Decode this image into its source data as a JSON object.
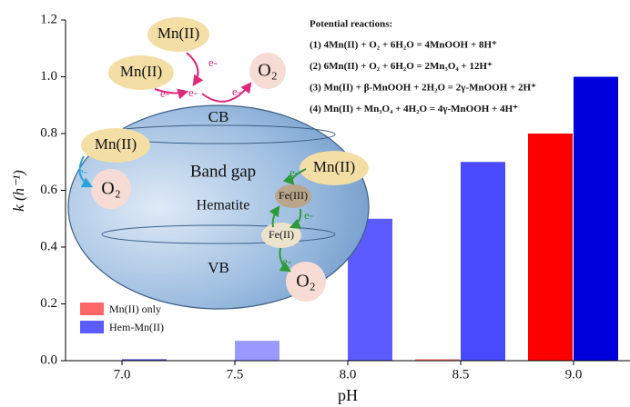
{
  "chart_data": {
    "type": "bar",
    "x_label": "pH",
    "y_label": "k (h⁻¹)",
    "categories": [
      "7.0",
      "7.5",
      "8.0",
      "8.5",
      "9.0"
    ],
    "series": [
      {
        "name": "Mn(II) only",
        "color": "#ff6666",
        "colors": [
          "#ff9999",
          "#ff9999",
          "#ff9999",
          "#ff7070",
          "#ff0000"
        ],
        "values": [
          0,
          0,
          0,
          0.005,
          0.8
        ]
      },
      {
        "name": "Hem-Mn(II)",
        "color": "#5b5bff",
        "colors": [
          "#4444dd",
          "#9999ff",
          "#5b5bff",
          "#4a4aff",
          "#0000dd"
        ],
        "values": [
          0.005,
          0.07,
          0.5,
          0.7,
          1.0
        ]
      }
    ],
    "ylim": [
      0,
      1.2
    ],
    "yticks": [
      {
        "value": 0,
        "label": "0.0"
      },
      {
        "value": 0.2,
        "label": "0.2"
      },
      {
        "value": 0.4,
        "label": "0.4"
      },
      {
        "value": 0.6,
        "label": "0.6"
      },
      {
        "value": 0.8,
        "label": "0.8"
      },
      {
        "value": 1.0,
        "label": "1.0"
      },
      {
        "value": 1.2,
        "label": "1.2"
      }
    ],
    "legend": "lower-left",
    "reactions": {
      "title": "Potential reactions:",
      "lines": [
        "(1) 4Mn(II) + O₂ + 6H₂O = 4MnOOH + 8H⁺",
        "(2) 6Mn(II) + O₂ + 6H₂O = 2Mn₃O₄ + 12H⁺",
        "(3) Mn(II) + β-MnOOH + 2H₂O = 2γ-MnOOH + 2H⁺",
        "(4) Mn(II) + Mn₃O₄ + 4H₂O = 4γ-MnOOH + 4H⁺"
      ]
    },
    "diagram": {
      "cb": "CB",
      "band_gap": "Band gap",
      "hematite": "Hematite",
      "vb": "VB",
      "mn": [
        "Mn(II)",
        "Mn(II)",
        "Mn(II)",
        "Mn(II)"
      ],
      "o2": [
        "O₂",
        "O₂",
        "O₂"
      ],
      "electrons": [
        "e-",
        "e-",
        "e-",
        "e-",
        "e-",
        "e-",
        "e-",
        "e-"
      ],
      "fe3": "Fe(III)",
      "fe2": "Fe(II)"
    }
  }
}
